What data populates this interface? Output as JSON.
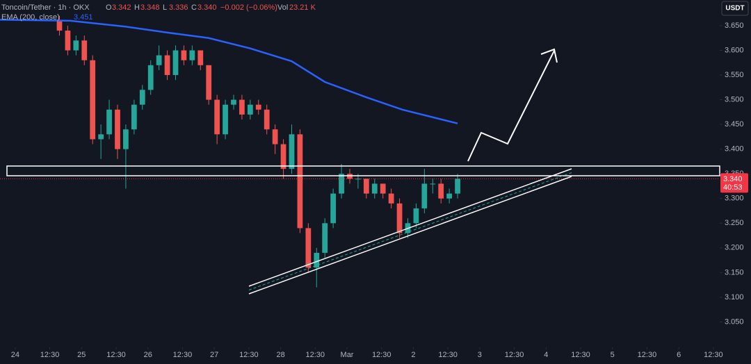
{
  "chart_data": {
    "type": "candlestick",
    "title": "Toncoin/Tether · 1h · OKX",
    "ohlc_legend": [
      {
        "key": "O",
        "value": "3.342"
      },
      {
        "key": "H",
        "value": "3.348"
      },
      {
        "key": "L",
        "value": "3.336"
      },
      {
        "key": "C",
        "value": "3.340"
      }
    ],
    "change": "−0.002 (−0.06%)",
    "volume_key": "Vol",
    "volume": "23.21 K",
    "currency": "USDT",
    "up_color": "#26a69a",
    "down_color": "#ef5350",
    "x": [
      16,
      19,
      22,
      25,
      28,
      31,
      34,
      37,
      40,
      43,
      46,
      49,
      52,
      55,
      58,
      61,
      64,
      67,
      70,
      73,
      76,
      79,
      82,
      85,
      88,
      91,
      94,
      97,
      100,
      103,
      106,
      109,
      112,
      115,
      118,
      121,
      124,
      127,
      130,
      133,
      136,
      139,
      142,
      145,
      148,
      151,
      154,
      157,
      160
    ],
    "open": [
      3.66,
      3.64,
      3.6,
      3.62,
      3.58,
      3.42,
      3.43,
      3.48,
      3.4,
      3.44,
      3.49,
      3.52,
      3.57,
      3.59,
      3.55,
      3.6,
      3.58,
      3.6,
      3.57,
      3.5,
      3.43,
      3.49,
      3.5,
      3.47,
      3.49,
      3.48,
      3.44,
      3.41,
      3.36,
      3.43,
      3.24,
      3.16,
      3.19,
      3.25,
      3.31,
      3.35,
      3.34,
      3.34,
      3.31,
      3.33,
      3.31,
      3.29,
      3.23,
      3.25,
      3.28,
      3.33,
      3.33,
      3.3,
      3.31
    ],
    "high": [
      3.67,
      3.65,
      3.63,
      3.63,
      3.59,
      3.45,
      3.5,
      3.49,
      3.45,
      3.5,
      3.53,
      3.58,
      3.61,
      3.6,
      3.61,
      3.61,
      3.61,
      3.6,
      3.57,
      3.51,
      3.5,
      3.51,
      3.51,
      3.5,
      3.5,
      3.49,
      3.45,
      3.42,
      3.45,
      3.44,
      3.25,
      3.2,
      3.26,
      3.32,
      3.37,
      3.36,
      3.35,
      3.34,
      3.34,
      3.33,
      3.32,
      3.3,
      3.26,
      3.29,
      3.36,
      3.34,
      3.34,
      3.32,
      3.35
    ],
    "low": [
      3.63,
      3.59,
      3.59,
      3.57,
      3.41,
      3.38,
      3.42,
      3.38,
      3.32,
      3.43,
      3.48,
      3.51,
      3.56,
      3.54,
      3.54,
      3.57,
      3.57,
      3.56,
      3.49,
      3.41,
      3.42,
      3.48,
      3.46,
      3.46,
      3.47,
      3.43,
      3.39,
      3.34,
      3.35,
      3.23,
      3.15,
      3.12,
      3.18,
      3.24,
      3.3,
      3.33,
      3.32,
      3.3,
      3.3,
      3.3,
      3.28,
      3.22,
      3.22,
      3.24,
      3.27,
      3.31,
      3.29,
      3.29,
      3.3
    ],
    "close": [
      3.64,
      3.6,
      3.62,
      3.58,
      3.42,
      3.43,
      3.48,
      3.4,
      3.44,
      3.49,
      3.52,
      3.57,
      3.59,
      3.55,
      3.6,
      3.58,
      3.6,
      3.57,
      3.5,
      3.43,
      3.49,
      3.5,
      3.47,
      3.49,
      3.48,
      3.44,
      3.41,
      3.36,
      3.43,
      3.24,
      3.16,
      3.19,
      3.25,
      3.31,
      3.35,
      3.34,
      3.34,
      3.31,
      3.33,
      3.31,
      3.29,
      3.23,
      3.25,
      3.28,
      3.33,
      3.33,
      3.3,
      3.31,
      3.34
    ],
    "ema": {
      "name": "EMA (200, close)",
      "value_label": "3.451",
      "color": "#2962ff",
      "x": [
        -5.5,
        20,
        40,
        55,
        70,
        85,
        100,
        112,
        127,
        140,
        160
      ],
      "values": [
        3.662,
        3.66,
        3.648,
        3.636,
        3.625,
        3.604,
        3.578,
        3.536,
        3.505,
        3.48,
        3.452
      ]
    },
    "last_price": {
      "value": 3.34,
      "label": "3.340",
      "countdown": "40:53",
      "color": "#f23645"
    },
    "xlim": [
      -5.5,
      254.8
    ],
    "ylim": [
      3.0,
      3.702
    ],
    "yticks": [
      {
        "value": 3.05,
        "label": "3.050"
      },
      {
        "value": 3.1,
        "label": "3.100"
      },
      {
        "value": 3.15,
        "label": "3.150"
      },
      {
        "value": 3.2,
        "label": "3.200"
      },
      {
        "value": 3.25,
        "label": "3.250"
      },
      {
        "value": 3.3,
        "label": "3.300"
      },
      {
        "value": 3.35,
        "label": "3.350"
      },
      {
        "value": 3.4,
        "label": "3.400"
      },
      {
        "value": 3.45,
        "label": "3.450"
      },
      {
        "value": 3.5,
        "label": "3.500"
      },
      {
        "value": 3.55,
        "label": "3.550"
      },
      {
        "value": 3.6,
        "label": "3.600"
      },
      {
        "value": 3.65,
        "label": "3.650"
      }
    ],
    "xticks": [
      {
        "value": 0,
        "label": "24"
      },
      {
        "value": 12.5,
        "label": "12:30"
      },
      {
        "value": 24,
        "label": "25"
      },
      {
        "value": 36.5,
        "label": "12:30"
      },
      {
        "value": 48,
        "label": "26"
      },
      {
        "value": 60.5,
        "label": "12:30"
      },
      {
        "value": 72,
        "label": "27"
      },
      {
        "value": 84.5,
        "label": "12:30"
      },
      {
        "value": 96,
        "label": "28"
      },
      {
        "value": 108.5,
        "label": "12:30"
      },
      {
        "value": 120,
        "label": "Mar"
      },
      {
        "value": 132.5,
        "label": "12:30"
      },
      {
        "value": 144,
        "label": "2"
      },
      {
        "value": 156.5,
        "label": "12:30"
      },
      {
        "value": 168,
        "label": "3"
      },
      {
        "value": 180.5,
        "label": "12:30"
      },
      {
        "value": 192,
        "label": "4"
      },
      {
        "value": 204.5,
        "label": "12:30"
      },
      {
        "value": 216,
        "label": "5"
      },
      {
        "value": 228.5,
        "label": "12:30"
      },
      {
        "value": 240,
        "label": "6"
      },
      {
        "value": 252.5,
        "label": "12:30"
      }
    ],
    "grid": false
  }
}
